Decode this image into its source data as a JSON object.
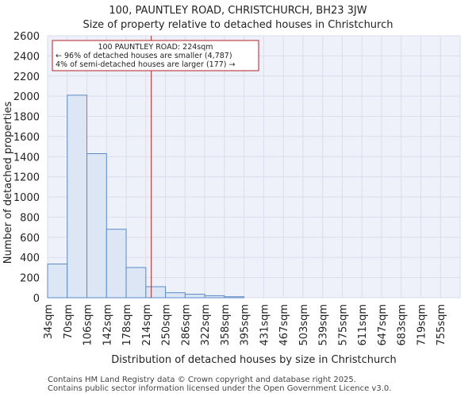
{
  "chart_data": {
    "type": "bar",
    "title": "100, PAUNTLEY ROAD, CHRISTCHURCH, BH23 3JW",
    "subtitle": "Size of property relative to detached houses in Christchurch",
    "xlabel": "Distribution of detached houses by size in Christchurch",
    "ylabel": "Number of detached properties",
    "categories": [
      "34sqm",
      "70sqm",
      "106sqm",
      "142sqm",
      "178sqm",
      "214sqm",
      "250sqm",
      "286sqm",
      "322sqm",
      "358sqm",
      "395sqm",
      "431sqm",
      "467sqm",
      "503sqm",
      "539sqm",
      "575sqm",
      "611sqm",
      "647sqm",
      "683sqm",
      "719sqm",
      "755sqm"
    ],
    "values": [
      335,
      2010,
      1430,
      680,
      300,
      110,
      50,
      35,
      20,
      10,
      0,
      0,
      0,
      0,
      0,
      0,
      0,
      0,
      0,
      0,
      0
    ],
    "ylim": [
      0,
      2600
    ],
    "yticks": [
      0,
      200,
      400,
      600,
      800,
      1000,
      1200,
      1400,
      1600,
      1800,
      2000,
      2200,
      2400,
      2600
    ],
    "bin_start": 34,
    "bin_width": 36,
    "marker_value": 224,
    "annotation": {
      "line1": "100 PAUNTLEY ROAD: 224sqm",
      "line2": "← 96% of detached houses are smaller (4,787)",
      "line3": "4% of semi-detached houses are larger (177) →"
    },
    "colors": {
      "bar_fill": "#dce6f5",
      "bar_stroke": "#5b8bc9",
      "marker": "#b22222",
      "grid": "#dcdcec",
      "plot_bg": "#eef0fa"
    }
  },
  "footer": {
    "line1": "Contains HM Land Registry data © Crown copyright and database right 2025.",
    "line2": "Contains public sector information licensed under the Open Government Licence v3.0."
  }
}
